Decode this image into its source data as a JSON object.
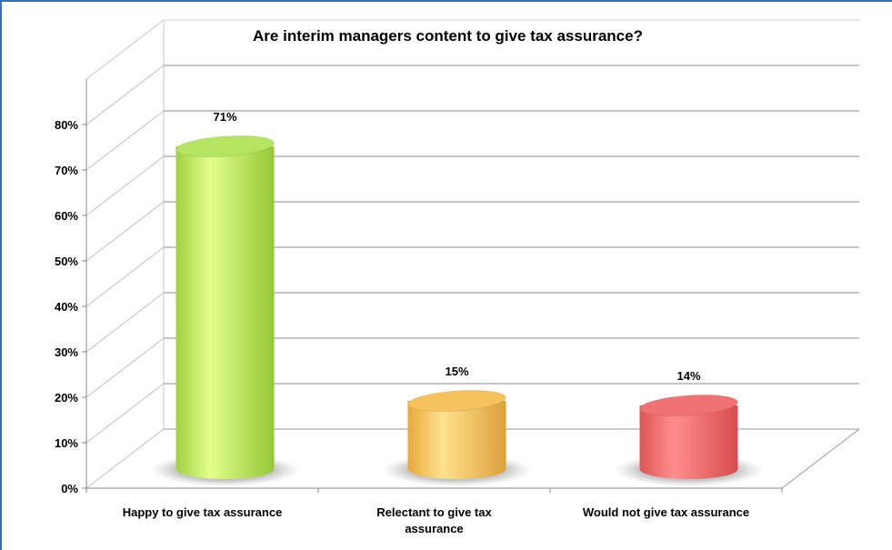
{
  "chart_data": {
    "type": "bar",
    "title": "Are interim managers content to give tax assurance?",
    "categories": [
      [
        "Happy to give tax assurance"
      ],
      [
        "Relectant to give tax",
        "assurance"
      ],
      [
        "Would not give tax assurance"
      ]
    ],
    "values": [
      71,
      15,
      14
    ],
    "data_labels": [
      "71%",
      "15%",
      "14%"
    ],
    "y_ticks": [
      "0%",
      "10%",
      "20%",
      "30%",
      "40%",
      "50%",
      "60%",
      "70%",
      "80%"
    ],
    "ylim": [
      0,
      80
    ],
    "grid": true,
    "legend": "none",
    "style": "3d-cylinder",
    "colors": [
      "#b5e461",
      "#f6c25e",
      "#f17272"
    ]
  }
}
